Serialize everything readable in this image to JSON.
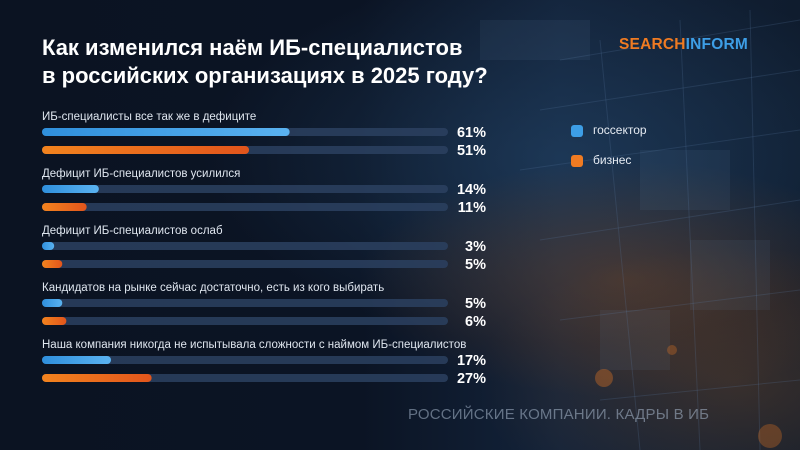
{
  "title_lines": [
    "Как изменился наём ИБ-специалистов",
    "в российских организациях в 2025 году?"
  ],
  "logo": {
    "part1": "SEARCH",
    "part2": "INFORM"
  },
  "footer": "РОССИЙСКИЕ КОМПАНИИ. КАДРЫ В ИБ",
  "colors": {
    "gov": "#3d9ee6",
    "business": "#f07b22",
    "track": "#2c4160"
  },
  "chart_data": {
    "type": "bar",
    "orientation": "horizontal",
    "title": "Как изменился наём ИБ-специалистов в российских организациях в 2025 году?",
    "value_unit": "%",
    "xlim": [
      0,
      100
    ],
    "legend_position": "right",
    "categories": [
      "ИБ-специалисты все так же в дефиците",
      "Дефицит ИБ-специалистов усилился",
      "Дефицит ИБ-специалистов ослаб",
      "Кандидатов на рынке сейчас достаточно, есть из кого выбирать",
      "Наша компания никогда не испытывала сложности с наймом ИБ-специалистов"
    ],
    "series": [
      {
        "name": "госсектор",
        "color": "#3d9ee6",
        "values": [
          61,
          14,
          3,
          5,
          17
        ]
      },
      {
        "name": "бизнес",
        "color": "#f07b22",
        "values": [
          51,
          11,
          5,
          6,
          27
        ]
      }
    ]
  }
}
